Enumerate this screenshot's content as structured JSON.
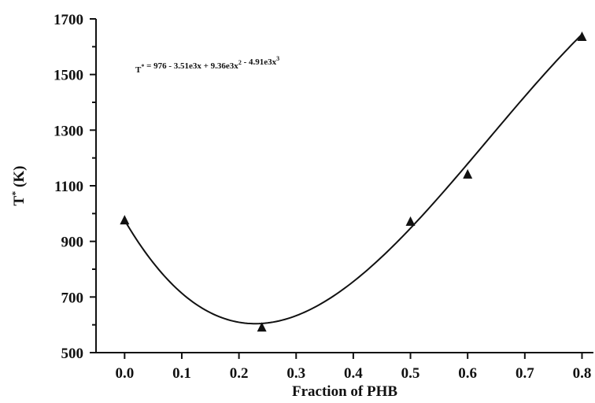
{
  "chart_data": {
    "type": "scatter",
    "xlabel": "Fraction of PHB",
    "ylabel": "T* (K)",
    "xlim": [
      -0.05,
      0.82
    ],
    "ylim": [
      500,
      1700
    ],
    "xticks": [
      0.0,
      0.1,
      0.2,
      0.3,
      0.4,
      0.5,
      0.6,
      0.7,
      0.8
    ],
    "xtick_labels": [
      "0.0",
      "0.1",
      "0.2",
      "0.3",
      "0.4",
      "0.5",
      "0.6",
      "0.7",
      "0.8"
    ],
    "yticks": [
      500,
      700,
      900,
      1100,
      1300,
      1500,
      1700
    ],
    "ytick_labels": [
      "500",
      "700",
      "900",
      "1100",
      "1300",
      "1500",
      "1700"
    ],
    "points": [
      {
        "x": 0.0,
        "y": 975
      },
      {
        "x": 0.24,
        "y": 590
      },
      {
        "x": 0.5,
        "y": 970
      },
      {
        "x": 0.6,
        "y": 1140
      },
      {
        "x": 0.8,
        "y": 1635
      }
    ],
    "fit": {
      "equation_text": "T* = 976 - 3.51e3x + 9.36e3x² - 4.91e3x³",
      "coefficients": [
        976,
        -3510,
        9360,
        -4910
      ],
      "x_range": [
        0.0,
        0.8
      ]
    },
    "grid": false,
    "legend": "none",
    "colors": {
      "ink": "#111111",
      "background": "#ffffff"
    }
  }
}
